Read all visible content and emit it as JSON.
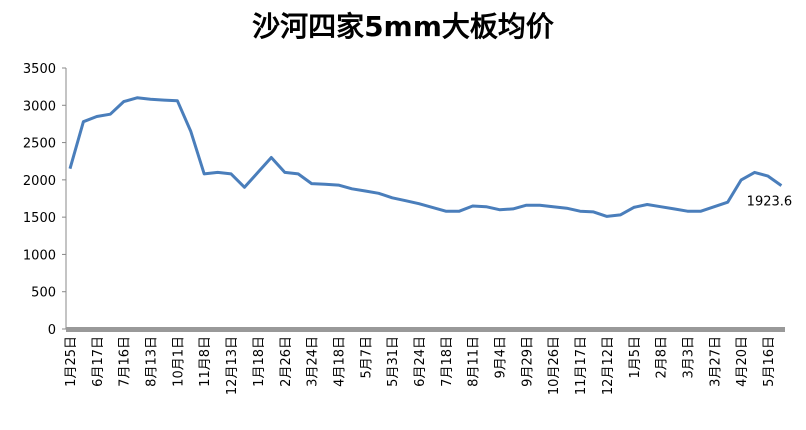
{
  "chart_data": {
    "type": "line",
    "title": "沙河四家5mm大板均价",
    "categories": [
      "1月25日",
      null,
      "6月17日",
      null,
      "7月16日",
      null,
      "8月13日",
      null,
      "10月1日",
      null,
      "11月8日",
      null,
      "12月13日",
      null,
      "1月18日",
      null,
      "2月26日",
      null,
      "3月24日",
      null,
      "4月18日",
      null,
      "5月7日",
      null,
      "5月31日",
      null,
      "6月24日",
      null,
      "7月18日",
      null,
      "8月11日",
      null,
      "9月4日",
      null,
      "9月29日",
      null,
      "10月26日",
      null,
      "11月17日",
      null,
      "12月12日",
      null,
      "1月5日",
      null,
      "2月8日",
      null,
      "3月3日",
      null,
      "3月27日",
      null,
      "4月20日",
      null,
      "5月16日",
      null
    ],
    "values": [
      2150,
      2780,
      2850,
      2880,
      3050,
      3100,
      3080,
      3070,
      3060,
      2650,
      2080,
      2100,
      2080,
      1900,
      2100,
      2300,
      2100,
      2080,
      1950,
      1940,
      1930,
      1880,
      1850,
      1820,
      1760,
      1720,
      1680,
      1630,
      1580,
      1580,
      1650,
      1640,
      1600,
      1610,
      1660,
      1660,
      1640,
      1620,
      1580,
      1570,
      1510,
      1530,
      1630,
      1670,
      1640,
      1610,
      1580,
      1580,
      1640,
      1700,
      2000,
      2100,
      2050,
      1923.6
    ],
    "color": "#4a7ebb",
    "ylim": [
      0,
      3500
    ],
    "yticks": [
      0,
      500,
      1000,
      1500,
      2000,
      2500,
      3000,
      3500
    ],
    "grid": false
  }
}
